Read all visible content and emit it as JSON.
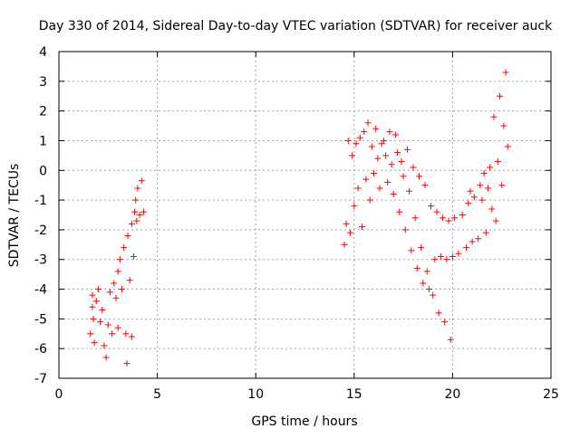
{
  "chart_data": {
    "type": "scatter",
    "title": "Day 330 of 2014, Sidereal Day-to-day VTEC variation (SDTVAR) for receiver auck",
    "xlabel": "GPS time / hours",
    "ylabel": "SDTVAR / TECUs",
    "xlim": [
      0,
      25
    ],
    "ylim": [
      -7,
      4
    ],
    "xticks": [
      0,
      5,
      10,
      15,
      20,
      25
    ],
    "yticks": [
      -7,
      -6,
      -5,
      -4,
      -3,
      -2,
      -1,
      0,
      1,
      2,
      3,
      4
    ],
    "grid": true,
    "legend": "none",
    "marker": "+",
    "colors": {
      "series": "#ff0000",
      "grid": "#a0a0a0",
      "axis": "#000000"
    },
    "series": [
      {
        "points": [
          [
            1.6,
            -5.5
          ],
          [
            1.7,
            -4.6
          ],
          [
            1.7,
            -4.2
          ],
          [
            1.75,
            -5.0
          ],
          [
            1.8,
            -5.8
          ],
          [
            1.9,
            -4.4
          ],
          [
            2.0,
            -4.0
          ],
          [
            2.1,
            -5.1
          ],
          [
            2.2,
            -4.7
          ],
          [
            2.3,
            -5.9
          ],
          [
            2.4,
            -6.3
          ],
          [
            2.5,
            -5.2
          ],
          [
            2.6,
            -4.1
          ],
          [
            2.7,
            -5.5
          ],
          [
            2.8,
            -3.8
          ],
          [
            2.9,
            -4.3
          ],
          [
            3.0,
            -3.4
          ],
          [
            3.0,
            -5.3
          ],
          [
            3.1,
            -3.0
          ],
          [
            3.2,
            -4.0
          ],
          [
            3.3,
            -2.6
          ],
          [
            3.4,
            -5.5
          ],
          [
            3.45,
            -6.5
          ],
          [
            3.5,
            -2.2
          ],
          [
            3.6,
            -3.7
          ],
          [
            3.7,
            -1.8
          ],
          [
            3.7,
            -5.6
          ],
          [
            3.8,
            -2.9
          ],
          [
            3.85,
            -1.4
          ],
          [
            3.9,
            -1.0
          ],
          [
            3.95,
            -1.7
          ],
          [
            4.0,
            -0.6
          ],
          [
            4.1,
            -1.5
          ],
          [
            4.2,
            -0.35
          ],
          [
            4.3,
            -1.4
          ]
        ]
      },
      {
        "points": [
          [
            14.5,
            -2.5
          ],
          [
            14.6,
            -1.8
          ],
          [
            14.7,
            1.0
          ],
          [
            14.8,
            -2.1
          ],
          [
            14.9,
            0.5
          ],
          [
            15.0,
            -1.2
          ],
          [
            15.1,
            0.9
          ],
          [
            15.2,
            -0.6
          ],
          [
            15.3,
            1.1
          ],
          [
            15.4,
            -1.9
          ],
          [
            15.5,
            1.3
          ],
          [
            15.6,
            -0.3
          ],
          [
            15.7,
            1.6
          ],
          [
            15.8,
            -1.0
          ],
          [
            15.9,
            0.8
          ],
          [
            16.0,
            -0.1
          ],
          [
            16.1,
            1.4
          ],
          [
            16.2,
            0.4
          ],
          [
            16.3,
            -0.6
          ],
          [
            16.4,
            0.9
          ],
          [
            16.5,
            1.0
          ],
          [
            16.6,
            0.5
          ],
          [
            16.7,
            -0.4
          ],
          [
            16.8,
            1.3
          ],
          [
            16.9,
            0.2
          ],
          [
            17.0,
            -0.8
          ],
          [
            17.1,
            1.2
          ],
          [
            17.2,
            0.6
          ],
          [
            17.3,
            -1.4
          ],
          [
            17.4,
            0.3
          ],
          [
            17.5,
            -0.2
          ],
          [
            17.6,
            -2.0
          ],
          [
            17.7,
            0.7
          ],
          [
            17.8,
            -0.7
          ],
          [
            17.9,
            -2.7
          ],
          [
            18.0,
            0.1
          ],
          [
            18.1,
            -1.6
          ],
          [
            18.2,
            -3.3
          ],
          [
            18.3,
            -0.2
          ],
          [
            18.4,
            -2.6
          ],
          [
            18.5,
            -3.8
          ],
          [
            18.6,
            -0.5
          ],
          [
            18.7,
            -3.4
          ],
          [
            18.8,
            -4.0
          ],
          [
            18.9,
            -1.2
          ],
          [
            19.0,
            -4.2
          ],
          [
            19.1,
            -3.0
          ],
          [
            19.2,
            -1.4
          ],
          [
            19.3,
            -4.8
          ],
          [
            19.4,
            -2.9
          ],
          [
            19.5,
            -1.6
          ],
          [
            19.6,
            -5.1
          ],
          [
            19.7,
            -3.0
          ],
          [
            19.8,
            -1.7
          ],
          [
            19.9,
            -5.7
          ],
          [
            20.0,
            -2.9
          ],
          [
            20.1,
            -1.6
          ],
          [
            20.3,
            -2.8
          ],
          [
            20.5,
            -1.5
          ],
          [
            20.7,
            -2.6
          ],
          [
            20.8,
            -1.1
          ],
          [
            20.9,
            -0.7
          ],
          [
            21.0,
            -2.4
          ],
          [
            21.1,
            -0.9
          ],
          [
            21.3,
            -2.3
          ],
          [
            21.4,
            -0.5
          ],
          [
            21.5,
            -1.0
          ],
          [
            21.6,
            -0.1
          ],
          [
            21.7,
            -2.1
          ],
          [
            21.8,
            -0.6
          ],
          [
            21.9,
            0.1
          ],
          [
            22.0,
            -1.3
          ],
          [
            22.1,
            1.8
          ],
          [
            22.2,
            -1.7
          ],
          [
            22.3,
            0.3
          ],
          [
            22.4,
            2.5
          ],
          [
            22.5,
            -0.5
          ],
          [
            22.6,
            1.5
          ],
          [
            22.7,
            3.3
          ],
          [
            22.8,
            0.8
          ]
        ]
      }
    ]
  }
}
